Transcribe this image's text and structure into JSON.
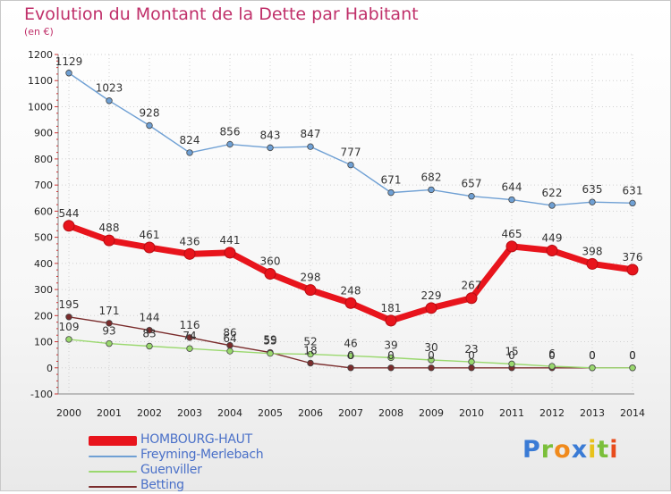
{
  "chart_data": {
    "type": "line",
    "title": "Evolution du Montant de la Dette par Habitant",
    "subtitle": "(en €)",
    "xlabel": "",
    "ylabel": "",
    "x": [
      "2000",
      "2001",
      "2002",
      "2003",
      "2004",
      "2005",
      "2006",
      "2007",
      "2008",
      "2009",
      "2010",
      "2011",
      "2012",
      "2013",
      "2014"
    ],
    "ylim": [
      -100,
      1200
    ],
    "yticks": [
      -100,
      0,
      100,
      200,
      300,
      400,
      500,
      600,
      700,
      800,
      900,
      1000,
      1100,
      1200
    ],
    "grid": true,
    "legend_position": "bottom-left",
    "series": [
      {
        "name": "HOMBOURG-HAUT",
        "color": "#e8141c",
        "values": [
          544,
          488,
          461,
          436,
          441,
          360,
          298,
          248,
          181,
          229,
          267,
          465,
          449,
          398,
          376
        ],
        "labels": [
          "544",
          "488",
          "461",
          "436",
          "441",
          "360",
          "298",
          "248",
          "181",
          "229",
          "267",
          "465",
          "449",
          "398",
          "376"
        ]
      },
      {
        "name": "Freyming-Merlebach",
        "color": "#6fa0d4",
        "values": [
          1129,
          1023,
          928,
          824,
          856,
          843,
          847,
          777,
          671,
          682,
          657,
          644,
          622,
          635,
          631
        ],
        "labels": [
          "1129",
          "1023",
          "928",
          "824",
          "856",
          "843",
          "847",
          "777",
          "671",
          "682",
          "657",
          "644",
          "622",
          "635",
          "631"
        ]
      },
      {
        "name": "Guenviller",
        "color": "#9ad86e",
        "values": [
          109,
          93,
          83,
          74,
          64,
          55,
          52,
          46,
          39,
          30,
          23,
          15,
          6,
          0,
          0
        ],
        "labels": [
          "109",
          "93",
          "83",
          "74",
          "64",
          "55",
          "52",
          "46",
          "39",
          "30",
          "23",
          "15",
          "6",
          "0",
          "0"
        ]
      },
      {
        "name": "Betting",
        "color": "#7a2c2c",
        "values": [
          195,
          171,
          144,
          116,
          86,
          59,
          18,
          0,
          0,
          0,
          0,
          0,
          0,
          0,
          0
        ],
        "labels": [
          "195",
          "171",
          "144",
          "116",
          "86",
          "59",
          "18",
          "0",
          "0",
          "0",
          "0",
          "0",
          "0",
          "0",
          "0"
        ]
      }
    ]
  },
  "brand": {
    "letters": [
      "P",
      "r",
      "o",
      "x",
      "i",
      "t",
      "i"
    ],
    "colors": [
      "#3a7bd5",
      "#7bbf3a",
      "#f08a1c",
      "#3a7bd5",
      "#e8c21c",
      "#7bbf3a",
      "#e84c1c"
    ]
  }
}
